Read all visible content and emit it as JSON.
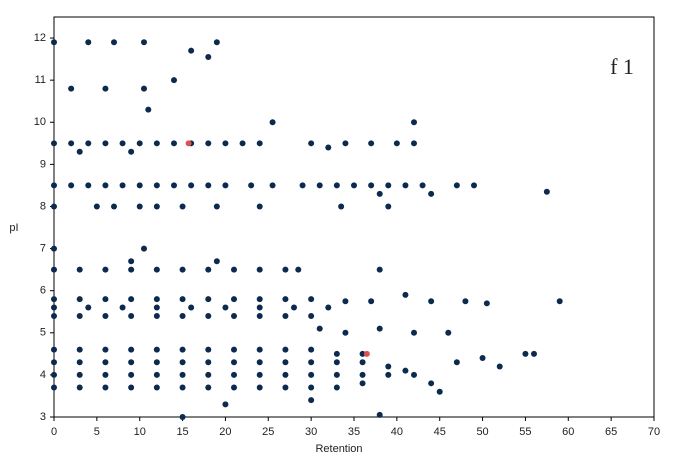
{
  "chart_data": {
    "type": "scatter",
    "annotation": "f 1",
    "xlabel": "Retention",
    "ylabel": "pI",
    "xlim": [
      0,
      70
    ],
    "ylim": [
      3,
      12.5
    ],
    "xticks": [
      0,
      5,
      10,
      15,
      20,
      25,
      30,
      35,
      40,
      45,
      50,
      55,
      60,
      65,
      70
    ],
    "yticks": [
      3,
      4,
      5,
      6,
      7,
      8,
      9,
      10,
      11,
      12
    ],
    "series": [
      {
        "color": "#0b2a4e",
        "x": [
          0,
          4,
          7,
          10.5,
          19,
          16,
          18,
          2,
          6,
          10.5,
          14,
          11,
          25.5,
          42,
          0,
          2,
          4,
          6,
          8,
          10,
          12,
          14,
          16,
          18,
          20,
          22,
          24,
          30,
          34,
          37,
          40,
          42,
          3,
          9,
          32,
          0,
          2,
          4,
          6,
          8,
          10,
          12,
          14,
          16,
          18,
          20,
          23,
          25.5,
          29,
          31,
          33,
          35,
          37,
          39,
          41,
          43,
          47,
          49,
          0,
          5,
          7,
          10,
          12,
          15,
          19,
          24,
          33.5,
          39,
          57.5,
          44,
          38,
          0,
          10.5,
          9,
          19,
          0,
          3,
          6,
          9,
          12,
          15,
          18,
          21,
          24,
          27,
          28.5,
          38,
          0,
          3,
          6,
          9,
          12,
          15,
          18,
          21,
          24,
          27,
          30,
          34,
          37,
          41,
          44,
          48,
          50.5,
          59,
          0,
          4,
          8,
          12,
          16,
          20,
          24,
          28,
          32,
          0,
          3,
          6,
          9,
          12,
          15,
          18,
          21,
          24,
          27,
          30,
          31,
          34,
          38,
          42,
          46,
          0,
          3,
          6,
          9,
          12,
          15,
          18,
          21,
          24,
          27,
          30,
          33,
          36,
          0,
          3,
          6,
          9,
          12,
          15,
          18,
          21,
          24,
          27,
          30,
          33,
          36,
          39,
          0,
          3,
          6,
          9,
          12,
          15,
          18,
          21,
          24,
          27,
          30,
          33,
          36,
          39,
          42,
          0,
          3,
          6,
          9,
          12,
          15,
          18,
          21,
          24,
          27,
          30,
          33,
          36,
          41,
          44,
          47,
          50,
          52,
          55,
          56,
          15,
          38,
          20,
          30,
          45
        ],
        "y": [
          11.9,
          11.9,
          11.9,
          11.9,
          11.9,
          11.7,
          11.55,
          10.8,
          10.8,
          10.8,
          11,
          10.3,
          10,
          10,
          9.5,
          9.5,
          9.5,
          9.5,
          9.5,
          9.5,
          9.5,
          9.5,
          9.5,
          9.5,
          9.5,
          9.5,
          9.5,
          9.5,
          9.5,
          9.5,
          9.5,
          9.5,
          9.3,
          9.3,
          9.4,
          8.5,
          8.5,
          8.5,
          8.5,
          8.5,
          8.5,
          8.5,
          8.5,
          8.5,
          8.5,
          8.5,
          8.5,
          8.5,
          8.5,
          8.5,
          8.5,
          8.5,
          8.5,
          8.5,
          8.5,
          8.5,
          8.5,
          8.5,
          8,
          8,
          8,
          8,
          8,
          8,
          8,
          8,
          8,
          8,
          8.35,
          8.3,
          8.3,
          7,
          7,
          6.7,
          6.7,
          6.5,
          6.5,
          6.5,
          6.5,
          6.5,
          6.5,
          6.5,
          6.5,
          6.5,
          6.5,
          6.5,
          6.5,
          5.8,
          5.8,
          5.8,
          5.8,
          5.8,
          5.8,
          5.8,
          5.8,
          5.8,
          5.8,
          5.8,
          5.75,
          5.75,
          5.9,
          5.75,
          5.75,
          5.7,
          5.75,
          5.6,
          5.6,
          5.6,
          5.6,
          5.6,
          5.6,
          5.6,
          5.6,
          5.6,
          5.4,
          5.4,
          5.4,
          5.4,
          5.4,
          5.4,
          5.4,
          5.4,
          5.4,
          5.4,
          5.4,
          5.1,
          5.0,
          5.1,
          5.0,
          5.0,
          4.6,
          4.6,
          4.6,
          4.6,
          4.6,
          4.6,
          4.6,
          4.6,
          4.6,
          4.6,
          4.6,
          4.5,
          4.5,
          4.3,
          4.3,
          4.3,
          4.3,
          4.3,
          4.3,
          4.3,
          4.3,
          4.3,
          4.3,
          4.3,
          4.3,
          4.3,
          4.2,
          4.0,
          4.0,
          4.0,
          4.0,
          4.0,
          4.0,
          4.0,
          4.0,
          4.0,
          4.0,
          4.0,
          4.0,
          4.0,
          4.0,
          4.0,
          3.7,
          3.7,
          3.7,
          3.7,
          3.7,
          3.7,
          3.7,
          3.7,
          3.7,
          3.7,
          3.7,
          3.7,
          3.8,
          4.1,
          3.8,
          4.3,
          4.4,
          4.2,
          4.5,
          4.5,
          3.0,
          3.05,
          3.3,
          3.4,
          3.6
        ]
      },
      {
        "color": "#e05050",
        "x": [
          15.7,
          36.5
        ],
        "y": [
          9.5,
          4.5
        ]
      }
    ]
  }
}
